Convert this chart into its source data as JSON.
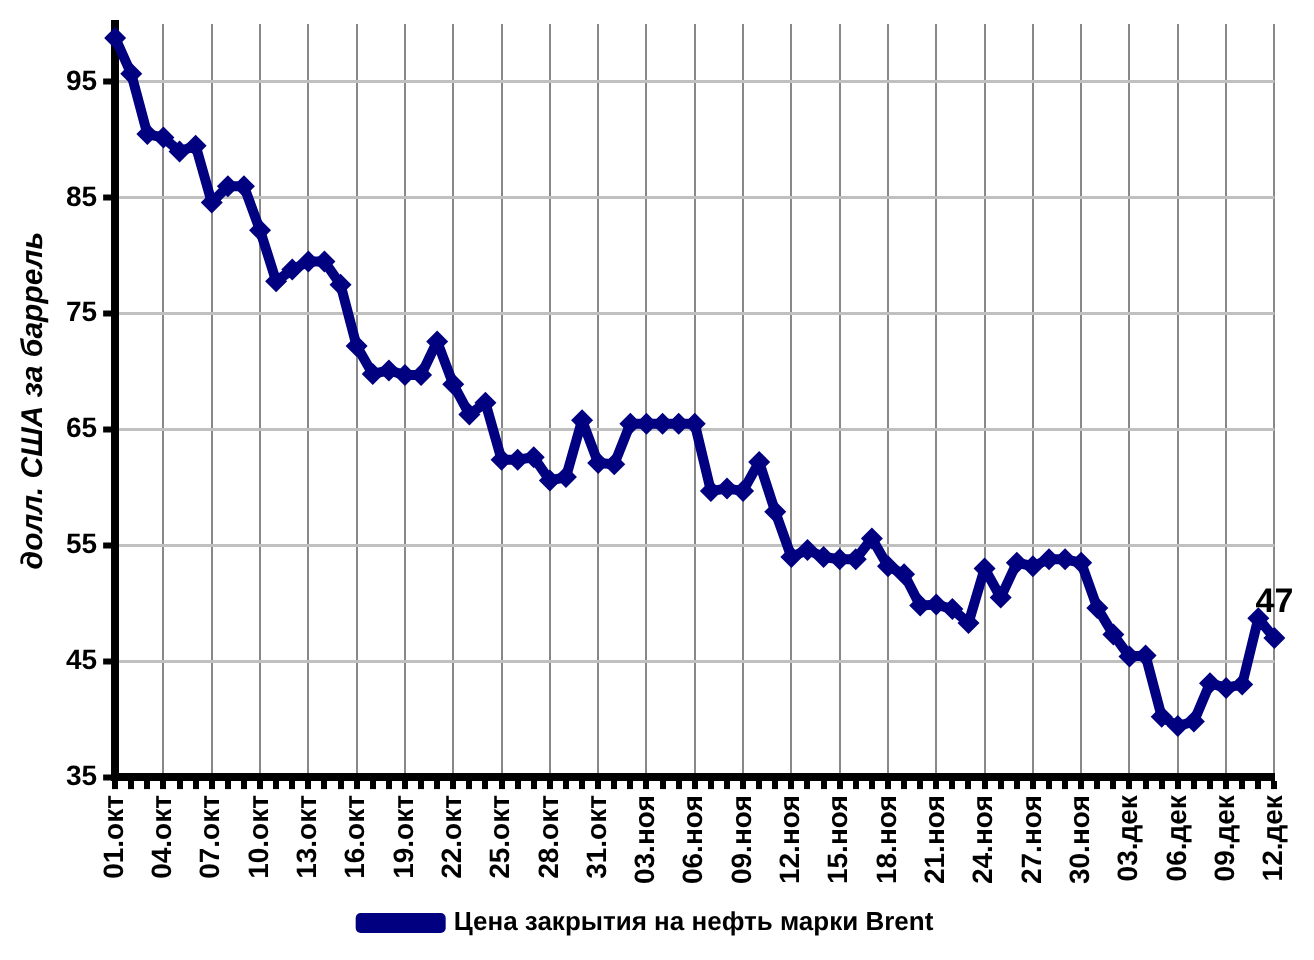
{
  "chart_data": {
    "type": "line",
    "ylabel": "долл. США за баррель",
    "categories": [
      "01.окт",
      null,
      null,
      "04.окт",
      null,
      null,
      "07.окт",
      null,
      null,
      "10.окт",
      null,
      null,
      "13.окт",
      null,
      null,
      "16.окт",
      null,
      null,
      "19.окт",
      null,
      null,
      "22.окт",
      null,
      null,
      "25.окт",
      null,
      null,
      "28.окт",
      null,
      null,
      "31.окт",
      null,
      null,
      "03.ноя",
      null,
      null,
      "06.ноя",
      null,
      null,
      "09.ноя",
      null,
      null,
      "12.ноя",
      null,
      null,
      "15.ноя",
      null,
      null,
      "18.ноя",
      null,
      null,
      "21.ноя",
      null,
      null,
      "24.ноя",
      null,
      null,
      "27.ноя",
      null,
      null,
      "30.ноя",
      null,
      null,
      "03.дек",
      null,
      null,
      "06.дек",
      null,
      null,
      "09.дек",
      null,
      null,
      "12.дек"
    ],
    "series": [
      {
        "name": "Цена закрытия на нефть марки Brent",
        "color": "#000080",
        "values": [
          98.8,
          95.7,
          90.5,
          90.2,
          89.0,
          89.5,
          84.6,
          86.0,
          86.0,
          82.2,
          77.8,
          78.8,
          79.5,
          79.5,
          77.5,
          72.2,
          69.8,
          70.1,
          69.7,
          69.7,
          72.6,
          68.9,
          66.3,
          67.3,
          62.4,
          62.4,
          62.6,
          60.6,
          60.9,
          65.8,
          62.1,
          62.0,
          65.5,
          65.5,
          65.5,
          65.5,
          65.5,
          59.7,
          59.9,
          59.7,
          62.2,
          57.9,
          54.0,
          54.6,
          54.0,
          53.8,
          53.8,
          55.6,
          53.2,
          52.5,
          49.8,
          49.9,
          49.5,
          48.3,
          53.0,
          50.5,
          53.5,
          53.2,
          53.8,
          53.8,
          53.5,
          49.6,
          47.3,
          45.4,
          45.5,
          40.2,
          39.4,
          39.8,
          43.1,
          42.7,
          43.0,
          48.7,
          47
        ],
        "value_labels": [
          null,
          null,
          null,
          null,
          null,
          null,
          null,
          null,
          null,
          null,
          null,
          null,
          null,
          null,
          null,
          null,
          null,
          null,
          null,
          null,
          null,
          null,
          null,
          null,
          null,
          null,
          null,
          null,
          null,
          null,
          null,
          null,
          null,
          null,
          null,
          null,
          null,
          null,
          null,
          null,
          null,
          null,
          null,
          null,
          null,
          null,
          null,
          null,
          null,
          null,
          null,
          null,
          null,
          null,
          null,
          null,
          null,
          null,
          null,
          null,
          null,
          null,
          null,
          null,
          null,
          null,
          null,
          null,
          null,
          null,
          null,
          null,
          "47"
        ]
      }
    ],
    "ylim": [
      35,
      100
    ],
    "yticks": [
      35,
      45,
      55,
      65,
      75,
      85,
      95
    ],
    "grid": true,
    "legend": "bottom",
    "marker": "diamond",
    "line_style": "solid"
  }
}
